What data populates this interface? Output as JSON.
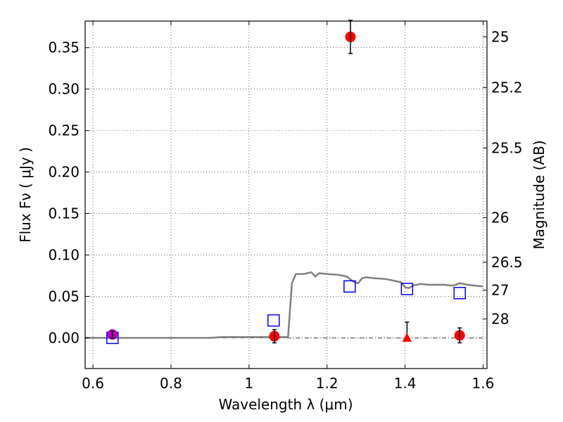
{
  "chart_data": {
    "type": "scatter",
    "xlabel": "Wavelength  λ (μm)",
    "ylabel": "Flux  Fν  ( μJy )",
    "y2label": "Magnitude (AB)",
    "xlim": [
      0.58,
      1.61
    ],
    "ylim": [
      -0.037,
      0.382
    ],
    "grid": true,
    "x_ticks": [
      0.6,
      0.8,
      1.0,
      1.2,
      1.4,
      1.6
    ],
    "x_tick_labels": [
      "0.6",
      "0.8",
      "1",
      "1.2",
      "1.4",
      "1.6"
    ],
    "y_ticks": [
      0.0,
      0.05,
      0.1,
      0.15,
      0.2,
      0.25,
      0.3,
      0.35
    ],
    "y_tick_labels": [
      "0.00",
      "0.05",
      "0.10",
      "0.15",
      "0.20",
      "0.25",
      "0.30",
      "0.35"
    ],
    "magnitude_ticks": [
      {
        "label": "25",
        "flux": 0.363
      },
      {
        "label": "25.2",
        "flux": 0.302
      },
      {
        "label": "25.5",
        "flux": 0.229
      },
      {
        "label": "26",
        "flux": 0.145
      },
      {
        "label": "26.5",
        "flux": 0.0912
      },
      {
        "label": "27",
        "flux": 0.0575
      },
      {
        "label": "28",
        "flux": 0.0229
      }
    ],
    "model_sed": {
      "color": "#808080",
      "x": [
        0.58,
        0.65,
        0.8,
        0.9,
        0.93,
        0.96,
        1.0,
        1.05,
        1.09,
        1.1,
        1.11,
        1.12,
        1.14,
        1.15,
        1.16,
        1.17,
        1.18,
        1.2,
        1.23,
        1.25,
        1.27,
        1.28,
        1.29,
        1.3,
        1.32,
        1.35,
        1.37,
        1.39,
        1.4,
        1.41,
        1.42,
        1.44,
        1.46,
        1.48,
        1.5,
        1.52,
        1.53,
        1.54,
        1.56,
        1.58,
        1.6
      ],
      "y": [
        0.0,
        0.0,
        0.0,
        0.0,
        0.001,
        0.001,
        0.001,
        0.001,
        0.001,
        0.001,
        0.066,
        0.077,
        0.077,
        0.078,
        0.079,
        0.074,
        0.078,
        0.077,
        0.076,
        0.074,
        0.067,
        0.066,
        0.072,
        0.073,
        0.072,
        0.071,
        0.069,
        0.067,
        0.061,
        0.06,
        0.063,
        0.065,
        0.064,
        0.064,
        0.064,
        0.063,
        0.064,
        0.066,
        0.064,
        0.063,
        0.062
      ]
    },
    "model_photometry": {
      "color": "#0000ff",
      "points": [
        {
          "x": 0.65,
          "y": 0.0
        },
        {
          "x": 1.063,
          "y": 0.021
        },
        {
          "x": 1.258,
          "y": 0.062
        },
        {
          "x": 1.405,
          "y": 0.059
        },
        {
          "x": 1.54,
          "y": 0.054
        }
      ]
    },
    "observed": [
      {
        "x": 0.65,
        "y": 0.004,
        "err": 0.004,
        "color": "#bf00bf",
        "marker": "circle"
      },
      {
        "x": 1.065,
        "y": 0.002,
        "err": 0.008,
        "color": "#ff0000",
        "marker": "circle"
      },
      {
        "x": 1.26,
        "y": 0.363,
        "err": 0.02,
        "color": "#ff0000",
        "marker": "circle"
      },
      {
        "x": 1.54,
        "y": 0.003,
        "err": 0.009,
        "color": "#ff0000",
        "marker": "circle"
      }
    ],
    "upper_limits": [
      {
        "x": 1.405,
        "y": 0.0,
        "upper": 0.019,
        "color": "#ff0000",
        "marker": "triangle"
      }
    ],
    "zero_line": {
      "y": 0.0,
      "style": "dash-dot"
    }
  }
}
